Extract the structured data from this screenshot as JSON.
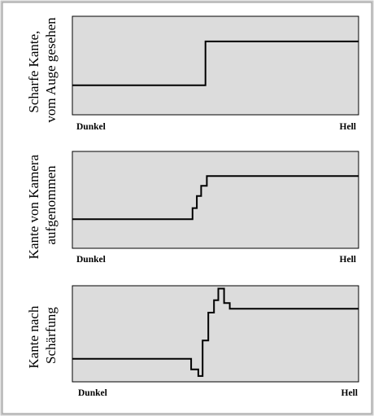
{
  "colors": {
    "plot_background": "#dcdcdc",
    "plot_border": "#000000",
    "signal": "#000000",
    "frame_shadow": "#8a8a8a"
  },
  "panels": [
    {
      "id": "eye",
      "label_lines": [
        "Scharfe Kante,",
        "vom Auge gesehen"
      ],
      "left_label": "Dunkel",
      "right_label": "Hell",
      "profile": [
        [
          0.0,
          0.3
        ],
        [
          0.465,
          0.3
        ],
        [
          0.465,
          0.745
        ],
        [
          1.0,
          0.745
        ]
      ]
    },
    {
      "id": "camera",
      "label_lines": [
        "Kante von Kamera",
        "aufgenommen"
      ],
      "left_label": "Dunkel",
      "right_label": "Hell",
      "profile": [
        [
          0.0,
          0.3
        ],
        [
          0.42,
          0.3
        ],
        [
          0.42,
          0.415
        ],
        [
          0.435,
          0.415
        ],
        [
          0.435,
          0.54
        ],
        [
          0.45,
          0.54
        ],
        [
          0.45,
          0.645
        ],
        [
          0.47,
          0.645
        ],
        [
          0.47,
          0.745
        ],
        [
          1.0,
          0.745
        ]
      ]
    },
    {
      "id": "sharpened",
      "label_lines": [
        "Kante nach",
        "Schärfung"
      ],
      "left_label": "Dunkel",
      "right_label": "Hell",
      "profile": [
        [
          0.0,
          0.24
        ],
        [
          0.415,
          0.24
        ],
        [
          0.415,
          0.13
        ],
        [
          0.44,
          0.13
        ],
        [
          0.44,
          0.06
        ],
        [
          0.455,
          0.06
        ],
        [
          0.455,
          0.43
        ],
        [
          0.475,
          0.43
        ],
        [
          0.475,
          0.72
        ],
        [
          0.495,
          0.72
        ],
        [
          0.495,
          0.85
        ],
        [
          0.51,
          0.85
        ],
        [
          0.51,
          0.97
        ],
        [
          0.53,
          0.97
        ],
        [
          0.53,
          0.82
        ],
        [
          0.55,
          0.82
        ],
        [
          0.55,
          0.76
        ],
        [
          1.0,
          0.76
        ]
      ]
    }
  ]
}
